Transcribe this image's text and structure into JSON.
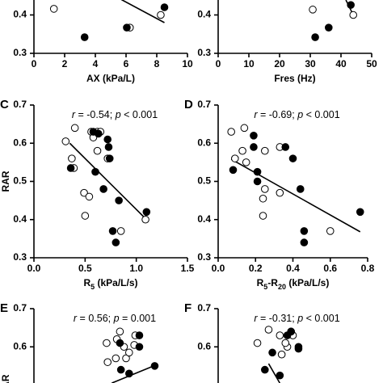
{
  "chart_data": [
    {
      "type": "scatter",
      "xlabel": [
        {
          "text": "AX (kPa/L)"
        }
      ],
      "xlim": [
        0,
        10
      ],
      "xticks": [
        0,
        2,
        4,
        6,
        8,
        10
      ],
      "ylim": [
        0.3,
        0.7
      ],
      "yticks": [
        0.3,
        0.4
      ],
      "series": [
        {
          "fill": "#ffffff",
          "x": [
            1.3,
            6.25,
            8.26
          ],
          "values": [
            0.416,
            0.367,
            0.4
          ]
        },
        {
          "fill": "#000000",
          "x": [
            3.3,
            6.05,
            8.5
          ],
          "values": [
            0.342,
            0.367,
            0.42
          ]
        }
      ],
      "fit": {
        "x": [
          5.7,
          8.5
        ],
        "values": [
          0.44,
          0.38
        ]
      }
    },
    {
      "type": "scatter",
      "xlabel": [
        {
          "text": "Fres (Hz)"
        }
      ],
      "xlim": [
        0,
        50
      ],
      "xticks": [
        0,
        10,
        20,
        30,
        40,
        50
      ],
      "ylim": [
        0.3,
        0.7
      ],
      "yticks": [
        0.3,
        0.4
      ],
      "series": [
        {
          "fill": "#ffffff",
          "x": [
            30.8,
            44
          ],
          "values": [
            0.414,
            0.4
          ]
        },
        {
          "fill": "#000000",
          "x": [
            31.6,
            36,
            43.2
          ],
          "values": [
            0.342,
            0.367,
            0.426
          ]
        }
      ],
      "fit": {
        "x": [
          41.6,
          44
        ],
        "values": [
          0.439,
          0.4
        ]
      }
    },
    {
      "type": "scatter",
      "letter": "C",
      "ylabel": "RAR",
      "annotation": [
        "r",
        " = -0.54; ",
        "p",
        " < 0.001"
      ],
      "xlabel": [
        {
          "text": "R"
        },
        {
          "text": "5",
          "sub": true
        },
        {
          "text": " (kPa/L/s)"
        }
      ],
      "xlim": [
        0,
        1.5
      ],
      "xticks": [
        {
          "value": 0,
          "label": "0.0"
        },
        0.5,
        {
          "value": 1,
          "label": "1.0"
        },
        1.5
      ],
      "ylim": [
        0.3,
        0.7
      ],
      "yticks": [
        0.3,
        0.4,
        0.5,
        0.6,
        0.7
      ],
      "series": [
        {
          "fill": "#ffffff",
          "x": [
            0.31,
            0.4,
            0.37,
            0.39,
            0.49,
            0.5,
            0.54,
            0.56,
            0.62,
            0.58,
            0.62,
            0.65,
            0.72,
            0.85,
            1.09
          ],
          "values": [
            0.605,
            0.64,
            0.56,
            0.535,
            0.47,
            0.41,
            0.46,
            0.63,
            0.63,
            0.615,
            0.58,
            0.63,
            0.56,
            0.37,
            0.4
          ]
        },
        {
          "fill": "#000000",
          "x": [
            0.36,
            0.58,
            0.63,
            0.72,
            0.73,
            0.74,
            0.68,
            0.6,
            0.8,
            0.77,
            0.83,
            1.1
          ],
          "values": [
            0.535,
            0.63,
            0.625,
            0.61,
            0.59,
            0.56,
            0.48,
            0.525,
            0.34,
            0.37,
            0.45,
            0.42
          ]
        }
      ],
      "fit": {
        "x": [
          0.35,
          1.1
        ],
        "values": [
          0.6,
          0.4
        ]
      }
    },
    {
      "type": "scatter",
      "letter": "D",
      "annotation": [
        "r",
        " = -0.69; ",
        "p",
        " < 0.001"
      ],
      "xlabel": [
        {
          "text": "R"
        },
        {
          "text": "5",
          "sub": true
        },
        {
          "text": "-R"
        },
        {
          "text": "20",
          "sub": true
        },
        {
          "text": " (kPa/L/s)"
        }
      ],
      "xlim": [
        0,
        0.8
      ],
      "xticks": [
        {
          "value": 0,
          "label": "0.0"
        },
        0.2,
        0.4,
        0.6,
        0.8
      ],
      "ylim": [
        0.3,
        0.7
      ],
      "yticks": [
        0.3,
        0.4,
        0.5,
        0.6,
        0.7
      ],
      "series": [
        {
          "fill": "#ffffff",
          "x": [
            0.07,
            0.14,
            0.13,
            0.15,
            0.25,
            0.33,
            0.25,
            0.24,
            0.24,
            0.33,
            0.6,
            0.09
          ],
          "values": [
            0.63,
            0.64,
            0.58,
            0.55,
            0.58,
            0.59,
            0.48,
            0.41,
            0.455,
            0.47,
            0.37,
            0.56
          ]
        },
        {
          "fill": "#000000",
          "x": [
            0.08,
            0.19,
            0.21,
            0.21,
            0.4,
            0.36,
            0.44,
            0.46,
            0.46,
            0.76,
            0.19
          ],
          "values": [
            0.53,
            0.59,
            0.525,
            0.5,
            0.56,
            0.59,
            0.48,
            0.37,
            0.34,
            0.42,
            0.62
          ]
        }
      ],
      "fit": {
        "x": [
          0.07,
          0.76
        ],
        "values": [
          0.558,
          0.368
        ]
      }
    },
    {
      "type": "scatter",
      "letter": "E",
      "ylabel": "RAR",
      "annotation": [
        "r",
        " = 0.56; ",
        "p",
        " = 0.001"
      ],
      "xlim": [
        0,
        1.5
      ],
      "ylim": [
        0.3,
        0.7
      ],
      "yticks": [
        0.6,
        0.7
      ],
      "series": [
        {
          "fill": "#ffffff",
          "x": [
            0.84,
            0.81,
            0.71,
            0.88,
            0.9,
            0.93,
            0.8,
            0.99,
            0.98,
            0.72
          ],
          "values": [
            0.64,
            0.62,
            0.61,
            0.6,
            0.57,
            0.585,
            0.57,
            0.63,
            0.605,
            0.56
          ]
        },
        {
          "fill": "#000000",
          "x": [
            0.84,
            1.03,
            0.85,
            0.93,
            1.18,
            1.03
          ],
          "values": [
            0.61,
            0.63,
            0.54,
            0.53,
            0.55,
            0.6
          ]
        }
      ],
      "fit": {
        "x": [
          0.76,
          1.17
        ],
        "values": [
          0.505,
          0.55
        ]
      }
    },
    {
      "type": "scatter",
      "letter": "F",
      "annotation": [
        "r",
        " = -0.31; ",
        "p",
        " < 0.001"
      ],
      "xlim": [
        0,
        0.8
      ],
      "ylim": [
        0.3,
        0.7
      ],
      "yticks": [
        0.6,
        0.7
      ],
      "series": [
        {
          "fill": "#ffffff",
          "x": [
            0.27,
            0.33,
            0.34,
            0.37,
            0.36,
            0.4,
            0.21
          ],
          "values": [
            0.645,
            0.63,
            0.58,
            0.6,
            0.61,
            0.63,
            0.61
          ]
        },
        {
          "fill": "#000000",
          "x": [
            0.37,
            0.39,
            0.43,
            0.43,
            0.29,
            0.25,
            0.33,
            0.39
          ],
          "values": [
            0.63,
            0.64,
            0.6,
            0.595,
            0.585,
            0.54,
            0.525,
            0.64
          ]
        }
      ],
      "fit": {
        "x": [
          0.27,
          0.33
        ],
        "values": [
          0.556,
          0.505
        ]
      }
    }
  ]
}
